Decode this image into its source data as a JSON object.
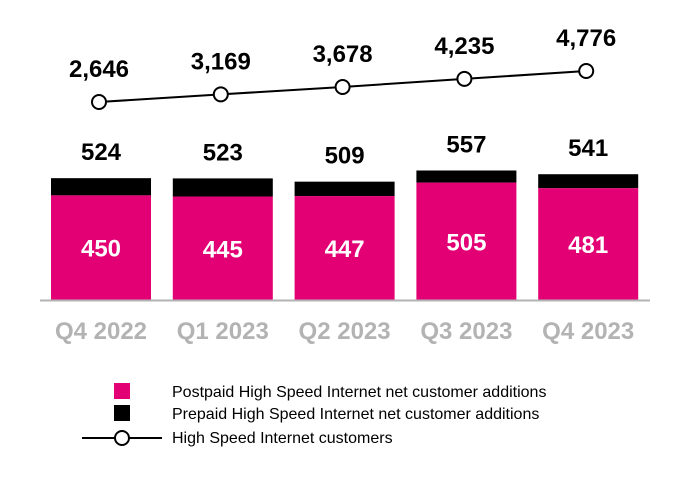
{
  "chart_data": {
    "type": "bar",
    "stacked": true,
    "categories": [
      "Q4 2022",
      "Q1 2023",
      "Q2 2023",
      "Q3 2023",
      "Q4 2023"
    ],
    "series": [
      {
        "name": "Postpaid High Speed Internet net customer additions",
        "values": [
          450,
          445,
          447,
          505,
          481
        ],
        "color": "#E20074"
      },
      {
        "name": "Prepaid High Speed Internet net customer additions",
        "values": [
          74,
          78,
          62,
          52,
          60
        ],
        "color": "#000000"
      }
    ],
    "totals": [
      524,
      523,
      509,
      557,
      541
    ],
    "line_series": {
      "name": "High Speed Internet customers",
      "values": [
        2646,
        3169,
        3678,
        4235,
        4776
      ],
      "labels": [
        "2,646",
        "3,169",
        "3,678",
        "4,235",
        "4,776"
      ],
      "color": "#000000"
    },
    "legend_position": "bottom",
    "grid": false
  }
}
